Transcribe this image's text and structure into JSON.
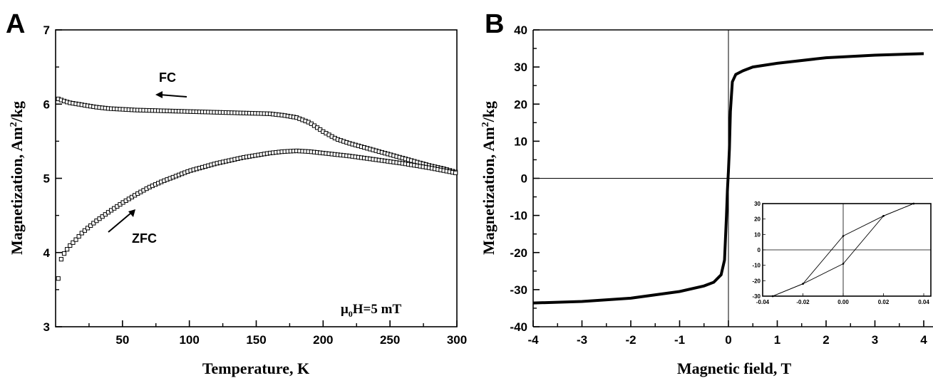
{
  "chart_data": [
    {
      "type": "scatter",
      "panel_label": "A",
      "xlabel": "Temperature, K",
      "ylabel_parts": [
        "Magnetization, Am",
        "2",
        "/kg"
      ],
      "xlim": [
        0,
        300
      ],
      "ylim": [
        3,
        7
      ],
      "x_ticks": [
        50,
        100,
        150,
        200,
        250,
        300
      ],
      "y_ticks": [
        3,
        4,
        5,
        6,
        7
      ],
      "marker": "open-square",
      "series": [
        {
          "name": "FC",
          "x": [
            2,
            5,
            10,
            20,
            30,
            40,
            50,
            60,
            80,
            100,
            120,
            140,
            160,
            170,
            180,
            190,
            200,
            210,
            220,
            230,
            240,
            250,
            260,
            270,
            280,
            290,
            300
          ],
          "y": [
            6.07,
            6.05,
            6.02,
            5.99,
            5.96,
            5.94,
            5.93,
            5.92,
            5.91,
            5.9,
            5.89,
            5.88,
            5.87,
            5.85,
            5.82,
            5.75,
            5.63,
            5.53,
            5.47,
            5.42,
            5.37,
            5.32,
            5.27,
            5.22,
            5.17,
            5.13,
            5.08
          ]
        },
        {
          "name": "ZFC",
          "x": [
            2,
            3,
            5,
            10,
            15,
            20,
            30,
            40,
            50,
            60,
            70,
            80,
            100,
            120,
            140,
            160,
            170,
            180,
            190,
            200,
            220,
            240,
            260,
            280,
            300
          ],
          "y": [
            3.65,
            3.85,
            3.95,
            4.08,
            4.17,
            4.27,
            4.42,
            4.55,
            4.67,
            4.78,
            4.88,
            4.96,
            5.1,
            5.2,
            5.28,
            5.34,
            5.36,
            5.37,
            5.36,
            5.34,
            5.3,
            5.25,
            5.2,
            5.14,
            5.07
          ]
        }
      ],
      "annotations": {
        "fc_label": "FC",
        "zfc_label": "ZFC",
        "field_parts": [
          "μ",
          "0",
          "H=5 mT"
        ]
      }
    },
    {
      "type": "line",
      "panel_label": "B",
      "xlabel": "Magnetic field, T",
      "ylabel_parts": [
        "Magnetization, Am",
        "2",
        "/kg"
      ],
      "xlim": [
        -4,
        4
      ],
      "ylim": [
        -40,
        40
      ],
      "x_ticks": [
        -4,
        -3,
        -2,
        -1,
        0,
        1,
        2,
        3,
        4
      ],
      "y_ticks": [
        -40,
        -30,
        -20,
        -10,
        0,
        10,
        20,
        30,
        40
      ],
      "series": [
        {
          "name": "",
          "x": [
            -4,
            -3,
            -2,
            -1,
            -0.5,
            -0.3,
            -0.15,
            -0.08,
            -0.04,
            -0.02,
            0,
            0.02,
            0.04,
            0.08,
            0.15,
            0.3,
            0.5,
            1,
            2,
            3,
            4
          ],
          "y": [
            -33.6,
            -33.2,
            -32.3,
            -30.5,
            -29,
            -28,
            -26,
            -22,
            -10,
            -3,
            2,
            8,
            18,
            26,
            28,
            29,
            30,
            31,
            32.5,
            33.2,
            33.6
          ]
        }
      ],
      "inset": {
        "xlim": [
          -0.04,
          0.04
        ],
        "ylim": [
          -30,
          30
        ],
        "x_ticks": [
          -0.04,
          -0.02,
          0.0,
          0.02,
          0.04
        ],
        "x_tick_labels": [
          "-0.04",
          "-0.02",
          "0.00",
          "0.02",
          "0.04"
        ],
        "y_ticks": [
          -30,
          -20,
          -10,
          0,
          10,
          20,
          30
        ],
        "series": [
          {
            "name": "",
            "x": [
              -0.035,
              -0.02,
              0.0,
              0.02,
              0.035
            ],
            "y": [
              -30,
              -22,
              9,
              22,
              30
            ]
          },
          {
            "name": "",
            "x": [
              -0.035,
              -0.02,
              0.0,
              0.02,
              0.035
            ],
            "y": [
              -30,
              -22,
              -9,
              22,
              30
            ]
          }
        ]
      }
    }
  ]
}
